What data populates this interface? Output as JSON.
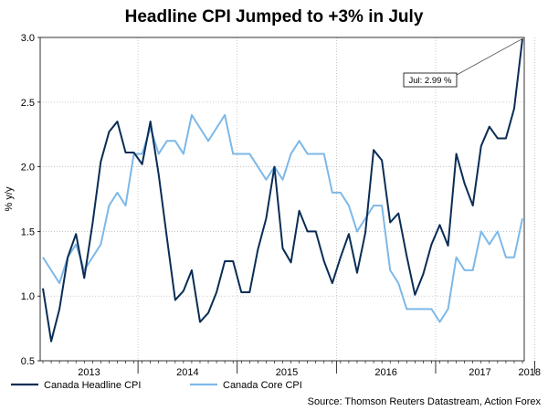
{
  "chart_data": {
    "type": "line",
    "title": "Headline CPI Jumped to +3% in July",
    "ylabel": "% y/y",
    "xlabel": "",
    "ylim": [
      0.5,
      3.0
    ],
    "yticks": [
      0.5,
      1.0,
      1.5,
      2.0,
      2.5,
      3.0
    ],
    "ytick_labels": [
      "0.5",
      "1.0",
      "1.5",
      "2.0",
      "2.5",
      "3.0"
    ],
    "x_year_labels": [
      "2013",
      "2014",
      "2015",
      "2016",
      "2017",
      "2018"
    ],
    "x_start": "2013-01",
    "grid": true,
    "legend_position": "bottom",
    "series": [
      {
        "name": "Canada Headline CPI",
        "color": "#0a2d55",
        "values": [
          1.06,
          0.65,
          0.9,
          1.3,
          1.48,
          1.14,
          1.56,
          2.04,
          2.27,
          2.35,
          2.11,
          2.11,
          2.02,
          2.35,
          1.94,
          1.45,
          0.97,
          1.04,
          1.2,
          0.8,
          0.87,
          1.03,
          1.27,
          1.27,
          1.03,
          1.03,
          1.36,
          1.6,
          2.0,
          1.37,
          1.26,
          1.66,
          1.5,
          1.5,
          1.27,
          1.1,
          1.3,
          1.48,
          1.18,
          1.49,
          2.13,
          2.05,
          1.57,
          1.64,
          1.31,
          1.01,
          1.17,
          1.4,
          1.55,
          1.39,
          2.1,
          1.87,
          1.7,
          2.16,
          2.31,
          2.22,
          2.22,
          2.45,
          2.99
        ]
      },
      {
        "name": "Canada Core CPI",
        "color": "#7db8e8",
        "values": [
          1.3,
          1.2,
          1.1,
          1.3,
          1.4,
          1.2,
          1.3,
          1.4,
          1.7,
          1.8,
          1.7,
          2.1,
          2.1,
          2.3,
          2.1,
          2.2,
          2.2,
          2.1,
          2.4,
          2.3,
          2.2,
          2.3,
          2.4,
          2.1,
          2.1,
          2.1,
          2.0,
          1.9,
          2.0,
          1.9,
          2.1,
          2.2,
          2.1,
          2.1,
          2.1,
          1.8,
          1.8,
          1.7,
          1.5,
          1.6,
          1.7,
          1.7,
          1.2,
          1.1,
          0.9,
          0.9,
          0.9,
          0.9,
          0.8,
          0.9,
          1.3,
          1.2,
          1.2,
          1.5,
          1.4,
          1.5,
          1.3,
          1.3,
          1.6
        ]
      }
    ],
    "annotation": {
      "text": "Jul: 2.99 %",
      "series": 0,
      "index": 58
    },
    "source": "Source: Thomson Reuters Datastream, Action Forex"
  }
}
